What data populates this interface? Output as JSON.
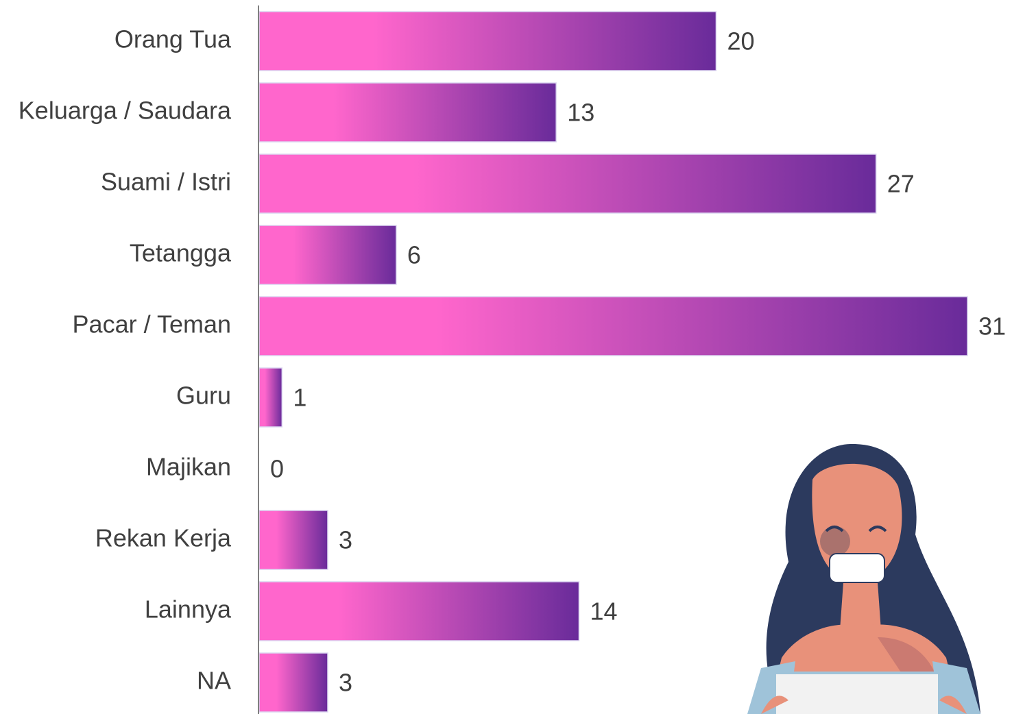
{
  "chart_data": {
    "type": "barh",
    "categories": [
      "Orang Tua",
      "Keluarga / Saudara",
      "Suami / Istri",
      "Tetangga",
      "Pacar / Teman",
      "Guru",
      "Majikan",
      "Rekan Kerja",
      "Lainnya",
      "NA"
    ],
    "values": [
      20,
      13,
      27,
      6,
      31,
      1,
      0,
      3,
      14,
      3
    ],
    "xlim": [
      0,
      31
    ],
    "colors": [
      "#ff66cc",
      "#692b9a"
    ]
  }
}
